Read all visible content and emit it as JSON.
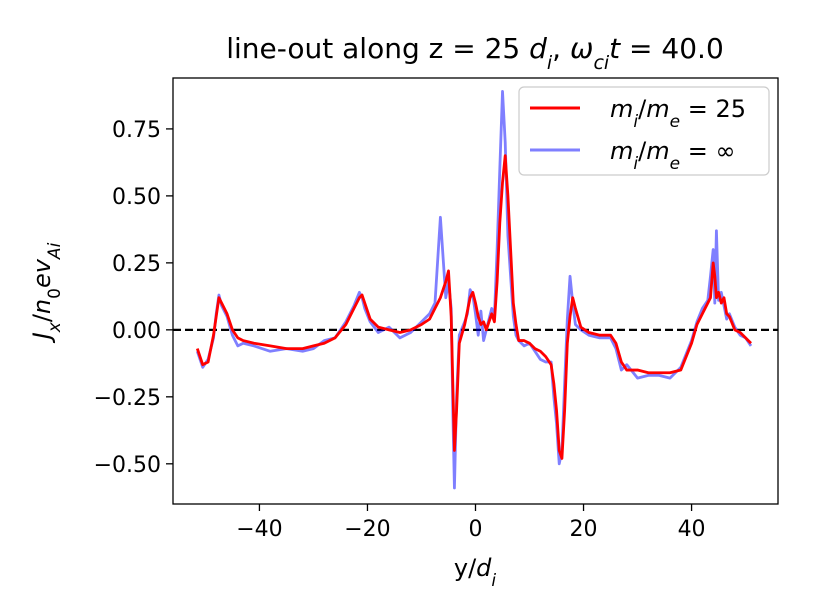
{
  "chart_data": {
    "type": "line",
    "title_parts": [
      "line-out along z = 25 ",
      "d",
      "i",
      ", ",
      "ω",
      "ci",
      "t",
      " = 40.0"
    ],
    "xlabel_parts": [
      "y/",
      "d",
      "i"
    ],
    "ylabel_parts": [
      "J",
      "x",
      "/",
      "n",
      "0",
      "ev",
      "Ai"
    ],
    "xlim": [
      -56,
      56
    ],
    "ylim": [
      -0.65,
      0.94
    ],
    "xticks": [
      -40,
      -20,
      0,
      20,
      40
    ],
    "xtick_labels": [
      "−40",
      "−20",
      "0",
      "20",
      "40"
    ],
    "yticks": [
      -0.5,
      -0.25,
      0.0,
      0.25,
      0.5,
      0.75
    ],
    "ytick_labels": [
      "−0.50",
      "−0.25",
      "0.00",
      "0.25",
      "0.50",
      "0.75"
    ],
    "grid": false,
    "legend_position": "upper-right",
    "reference_line": {
      "y": 0.0,
      "style": "dashed",
      "color": "#000000"
    },
    "series": [
      {
        "legend_parts": [
          "m",
          "i",
          "/",
          "m",
          "e",
          " = 25"
        ],
        "color": "#ff0000",
        "opacity": 1.0,
        "x": [
          -51.5,
          -50.5,
          -49.5,
          -48.5,
          -48.0,
          -47.5,
          -47.0,
          -46.0,
          -45.0,
          -44.0,
          -43.0,
          -41.0,
          -38.0,
          -35.0,
          -32.0,
          -30.0,
          -28.0,
          -26.0,
          -24.0,
          -22.5,
          -21.5,
          -21.0,
          -20.5,
          -19.5,
          -18.0,
          -16.0,
          -14.0,
          -12.0,
          -10.0,
          -8.5,
          -7.5,
          -6.5,
          -5.5,
          -5.0,
          -4.5,
          -4.2,
          -3.9,
          -3.5,
          -3.0,
          -2.0,
          -1.5,
          -1.0,
          -0.5,
          0.0,
          0.5,
          1.0,
          1.5,
          2.0,
          3.0,
          3.5,
          4.0,
          4.5,
          5.0,
          5.5,
          6.0,
          6.5,
          7.0,
          7.5,
          8.0,
          9.0,
          10.0,
          11.0,
          12.0,
          13.0,
          14.0,
          14.5,
          15.0,
          15.5,
          16.0,
          16.5,
          17.0,
          17.5,
          18.0,
          18.5,
          19.5,
          21.0,
          23.0,
          25.0,
          26.0,
          27.0,
          28.0,
          30.0,
          32.0,
          34.0,
          36.0,
          38.0,
          40.0,
          41.0,
          42.0,
          43.0,
          43.5,
          44.0,
          44.3,
          44.6,
          45.0,
          45.5,
          46.0,
          46.5,
          47.0,
          48.0,
          49.0,
          50.0,
          51.0
        ],
        "y": [
          -0.07,
          -0.13,
          -0.12,
          -0.02,
          0.05,
          0.12,
          0.1,
          0.06,
          0.0,
          -0.03,
          -0.04,
          -0.05,
          -0.06,
          -0.07,
          -0.07,
          -0.06,
          -0.05,
          -0.03,
          0.02,
          0.08,
          0.12,
          0.13,
          0.1,
          0.04,
          0.01,
          0.0,
          -0.01,
          0.0,
          0.02,
          0.04,
          0.08,
          0.12,
          0.18,
          0.22,
          0.05,
          -0.2,
          -0.45,
          -0.3,
          -0.05,
          0.02,
          0.07,
          0.12,
          0.14,
          0.1,
          0.05,
          0.02,
          0.03,
          0.0,
          0.06,
          0.03,
          0.18,
          0.4,
          0.55,
          0.65,
          0.5,
          0.3,
          0.1,
          0.02,
          -0.04,
          -0.04,
          -0.05,
          -0.07,
          -0.08,
          -0.1,
          -0.13,
          -0.2,
          -0.3,
          -0.45,
          -0.48,
          -0.3,
          -0.05,
          0.05,
          0.12,
          0.08,
          0.01,
          -0.01,
          -0.02,
          -0.02,
          -0.05,
          -0.12,
          -0.15,
          -0.15,
          -0.16,
          -0.16,
          -0.16,
          -0.15,
          -0.05,
          0.02,
          0.06,
          0.1,
          0.12,
          0.25,
          0.2,
          0.12,
          0.14,
          0.1,
          0.12,
          0.06,
          0.05,
          0.0,
          -0.01,
          -0.03,
          -0.05
        ]
      },
      {
        "legend_parts": [
          "m",
          "i",
          "/",
          "m",
          "e",
          " = ∞"
        ],
        "color": "#0000ff",
        "opacity": 0.5,
        "x": [
          -51.5,
          -50.5,
          -49.5,
          -48.5,
          -48.0,
          -47.5,
          -47.0,
          -46.0,
          -45.0,
          -44.0,
          -43.0,
          -41.0,
          -38.0,
          -35.0,
          -32.0,
          -30.0,
          -28.0,
          -26.0,
          -24.0,
          -22.5,
          -21.5,
          -21.0,
          -20.5,
          -19.5,
          -18.0,
          -16.0,
          -14.0,
          -12.0,
          -10.0,
          -8.5,
          -7.5,
          -6.5,
          -5.5,
          -5.0,
          -4.5,
          -4.2,
          -3.9,
          -3.5,
          -3.0,
          -2.0,
          -1.5,
          -1.0,
          -0.5,
          0.0,
          0.5,
          1.0,
          1.5,
          2.0,
          3.0,
          3.5,
          4.0,
          4.5,
          5.0,
          5.5,
          6.0,
          6.5,
          7.0,
          7.5,
          8.0,
          9.0,
          10.0,
          11.0,
          12.0,
          13.0,
          14.0,
          14.5,
          15.0,
          15.5,
          16.0,
          16.5,
          17.0,
          17.5,
          18.0,
          18.5,
          19.5,
          21.0,
          23.0,
          25.0,
          26.0,
          27.0,
          28.0,
          30.0,
          32.0,
          34.0,
          36.0,
          38.0,
          40.0,
          41.0,
          42.0,
          43.0,
          43.5,
          44.0,
          44.3,
          44.6,
          45.0,
          45.5,
          46.0,
          46.5,
          47.0,
          48.0,
          49.0,
          50.0,
          51.0
        ],
        "y": [
          -0.08,
          -0.14,
          -0.11,
          -0.03,
          0.06,
          0.13,
          0.09,
          0.05,
          -0.02,
          -0.06,
          -0.05,
          -0.06,
          -0.08,
          -0.07,
          -0.08,
          -0.07,
          -0.04,
          -0.03,
          0.03,
          0.09,
          0.14,
          0.12,
          0.08,
          0.03,
          -0.01,
          0.01,
          -0.03,
          -0.01,
          0.03,
          0.06,
          0.1,
          0.42,
          0.12,
          0.18,
          0.08,
          -0.3,
          -0.59,
          -0.25,
          -0.02,
          0.03,
          0.06,
          0.15,
          0.13,
          0.06,
          -0.02,
          0.07,
          -0.04,
          0.0,
          0.08,
          0.05,
          0.3,
          0.6,
          0.89,
          0.7,
          0.35,
          0.2,
          0.05,
          -0.02,
          -0.04,
          -0.06,
          -0.05,
          -0.08,
          -0.11,
          -0.12,
          -0.12,
          -0.25,
          -0.35,
          -0.5,
          -0.45,
          -0.2,
          0.04,
          0.2,
          0.1,
          0.02,
          0.0,
          -0.02,
          -0.03,
          -0.03,
          -0.07,
          -0.15,
          -0.13,
          -0.18,
          -0.17,
          -0.17,
          -0.18,
          -0.14,
          -0.04,
          0.03,
          0.08,
          0.11,
          0.2,
          0.3,
          0.1,
          0.37,
          0.11,
          0.14,
          0.09,
          0.04,
          0.06,
          0.01,
          -0.02,
          -0.03,
          -0.06
        ]
      }
    ]
  }
}
